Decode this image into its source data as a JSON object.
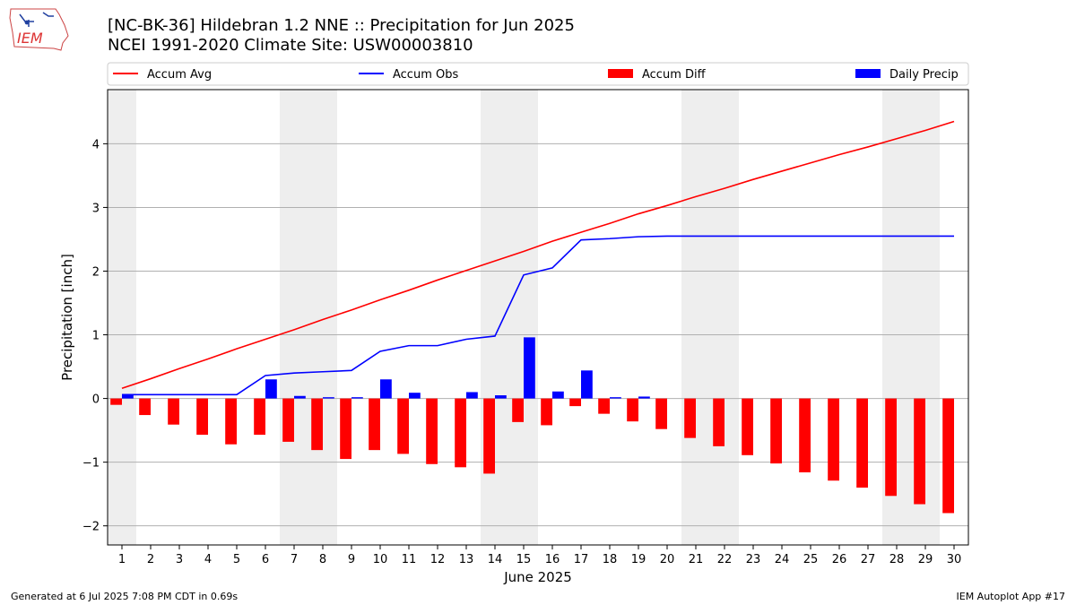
{
  "header": {
    "title_line1": "[NC-BK-36] Hildebran 1.2 NNE :: Precipitation for Jun 2025",
    "title_line2": "NCEI 1991-2020 Climate Site: USW00003810",
    "logo_text": "IEM"
  },
  "footer": {
    "left": "Generated at 6 Jul 2025 7:08 PM CDT in 0.69s",
    "right": "IEM Autoplot App #17"
  },
  "colors": {
    "accum_avg": "#ff0000",
    "accum_obs": "#0000ff",
    "accum_diff": "#ff0000",
    "daily_precip": "#0000ff",
    "weekend_shade": "#eeeeee",
    "grid": "#b0b0b0"
  },
  "chart_data": {
    "type": "bar",
    "xlabel": "June 2025",
    "ylabel": "Precipitation [inch]",
    "xlim": [
      0.5,
      30.5
    ],
    "ylim": [
      -2.3,
      4.85
    ],
    "yticks": [
      -2,
      -1,
      0,
      1,
      2,
      3,
      4
    ],
    "ytick_labels": [
      "−2",
      "−1",
      "0",
      "1",
      "2",
      "3",
      "4"
    ],
    "grid": "horizontal",
    "legend_position": "top",
    "legend": [
      "Accum Avg",
      "Accum Obs",
      "Accum Diff",
      "Daily Precip"
    ],
    "days": [
      1,
      2,
      3,
      4,
      5,
      6,
      7,
      8,
      9,
      10,
      11,
      12,
      13,
      14,
      15,
      16,
      17,
      18,
      19,
      20,
      21,
      22,
      23,
      24,
      25,
      26,
      27,
      28,
      29,
      30
    ],
    "weekend_days": [
      1,
      7,
      8,
      14,
      15,
      21,
      22,
      28,
      29
    ],
    "series": [
      {
        "name": "Accum Avg",
        "kind": "line",
        "values": [
          0.16,
          0.31,
          0.47,
          0.62,
          0.78,
          0.93,
          1.08,
          1.24,
          1.39,
          1.55,
          1.7,
          1.86,
          2.01,
          2.16,
          2.31,
          2.47,
          2.61,
          2.75,
          2.9,
          3.03,
          3.17,
          3.3,
          3.44,
          3.57,
          3.7,
          3.83,
          3.95,
          4.08,
          4.21,
          4.35
        ]
      },
      {
        "name": "Accum Obs",
        "kind": "line",
        "values": [
          0.06,
          0.06,
          0.06,
          0.06,
          0.06,
          0.36,
          0.4,
          0.42,
          0.44,
          0.74,
          0.83,
          0.83,
          0.93,
          0.98,
          1.94,
          2.05,
          2.49,
          2.51,
          2.54,
          2.55,
          2.55,
          2.55,
          2.55,
          2.55,
          2.55,
          2.55,
          2.55,
          2.55,
          2.55,
          2.55
        ]
      },
      {
        "name": "Accum Diff",
        "kind": "bar",
        "values": [
          -0.1,
          -0.26,
          -0.41,
          -0.57,
          -0.72,
          -0.57,
          -0.68,
          -0.81,
          -0.95,
          -0.81,
          -0.87,
          -1.03,
          -1.08,
          -1.18,
          -0.37,
          -0.42,
          -0.12,
          -0.24,
          -0.36,
          -0.48,
          -0.62,
          -0.75,
          -0.89,
          -1.02,
          -1.16,
          -1.29,
          -1.4,
          -1.53,
          -1.66,
          -1.8
        ]
      },
      {
        "name": "Daily Precip",
        "kind": "bar",
        "values": [
          0.06,
          0,
          0,
          0,
          0,
          0.3,
          0.04,
          0.02,
          0.02,
          0.3,
          0.09,
          0,
          0.1,
          0.05,
          0.96,
          0.11,
          0.44,
          0.02,
          0.03,
          0,
          0,
          0,
          0,
          0,
          0,
          0,
          0,
          0,
          0,
          0
        ]
      }
    ]
  }
}
